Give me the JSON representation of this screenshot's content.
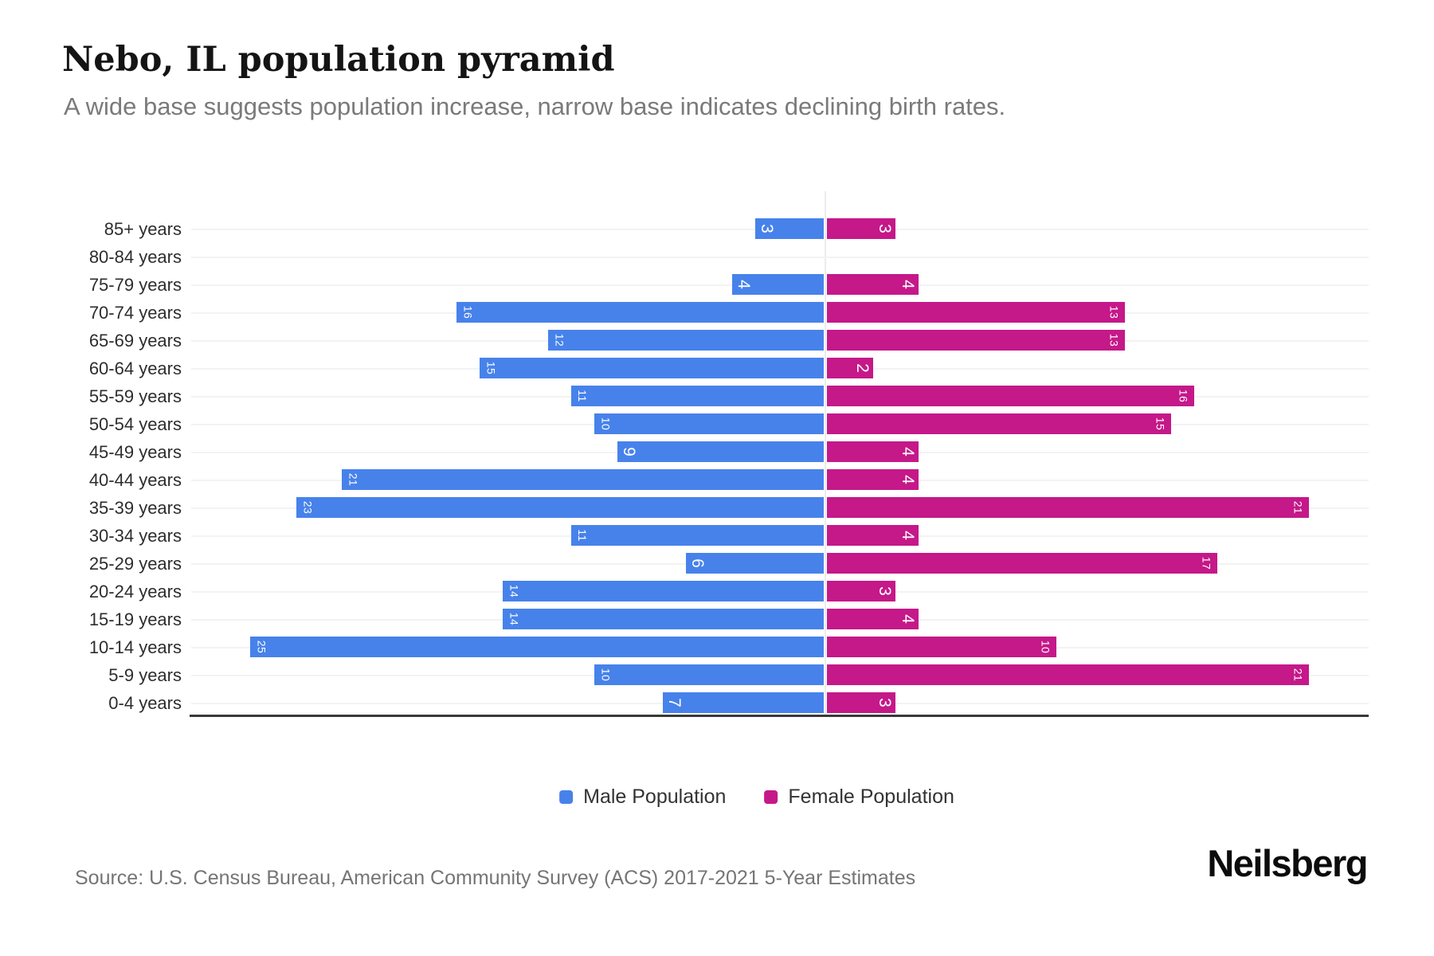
{
  "chart_data": {
    "type": "bar",
    "variant": "population-pyramid",
    "title": "Nebo, IL population pyramid",
    "subtitle": "A wide base suggests population increase, narrow base indicates declining birth rates.",
    "categories": [
      "85+ years",
      "80-84 years",
      "75-79 years",
      "70-74 years",
      "65-69 years",
      "60-64 years",
      "55-59 years",
      "50-54 years",
      "45-49 years",
      "40-44 years",
      "35-39 years",
      "30-34 years",
      "25-29 years",
      "20-24 years",
      "15-19 years",
      "10-14 years",
      "5-9 years",
      "0-4 years"
    ],
    "series": [
      {
        "name": "Male Population",
        "side": "left",
        "color": "#4782EB",
        "values": [
          3,
          0,
          4,
          16,
          12,
          15,
          11,
          10,
          9,
          21,
          23,
          11,
          6,
          14,
          14,
          25,
          10,
          7
        ]
      },
      {
        "name": "Female Population",
        "side": "right",
        "color": "#C51889",
        "values": [
          3,
          0,
          4,
          13,
          13,
          2,
          16,
          15,
          4,
          4,
          21,
          4,
          17,
          3,
          4,
          10,
          21,
          3
        ]
      }
    ],
    "value_labels": "inside bar ends, rotated 90deg, white",
    "legend_position": "bottom-center",
    "x_axis_tick_labels_visible": false,
    "grid": "light horizontal line per category",
    "source": "Source: U.S. Census Bureau, American Community Survey (ACS) 2017-2021 5-Year Estimates",
    "brand": "Neilsberg"
  },
  "colors": {
    "male": "#4782EB",
    "female": "#C51889",
    "title_text": "#141414",
    "subtitle_text": "#7a7a7a",
    "category_label_text": "#2d2d2d",
    "legend_text": "#333333",
    "source_text": "#757575",
    "gridline": "#f3f3f3",
    "center_line": "#ececec",
    "bottom_axis_line": "#383838",
    "value_label_text": "#ffffff",
    "background": "#ffffff"
  }
}
